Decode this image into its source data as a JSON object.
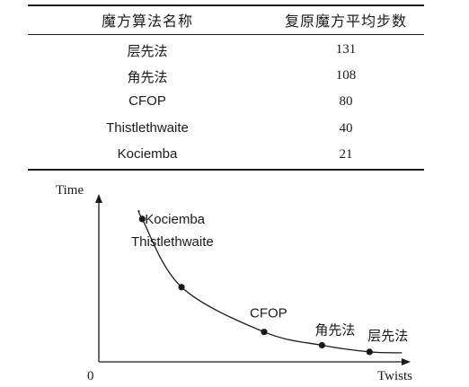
{
  "table": {
    "headers": [
      "魔方算法名称",
      "复原魔方平均步数"
    ],
    "rows": [
      {
        "name": "层先法",
        "steps": "131"
      },
      {
        "name": "角先法",
        "steps": "108"
      },
      {
        "name": "CFOP",
        "steps": "80"
      },
      {
        "name": "Thistlethwaite",
        "steps": "40"
      },
      {
        "name": "Kociemba",
        "steps": "21"
      }
    ]
  },
  "chart_data": {
    "type": "line",
    "title": "",
    "xlabel": "Twists",
    "ylabel": "Time",
    "origin_label": "0",
    "grid": false,
    "legend": "none",
    "curve": "decreasing hyperbola-like curve; y values are qualitative (relative time, 0-100)",
    "x": [
      21,
      40,
      80,
      108,
      131
    ],
    "y": [
      86,
      45,
      18,
      10,
      6
    ],
    "point_labels": [
      "Kociemba",
      "Thistlethwaite",
      "CFOP",
      "角先法",
      "层先法"
    ],
    "xlim": [
      0,
      150
    ],
    "ylim": [
      0,
      100
    ]
  }
}
